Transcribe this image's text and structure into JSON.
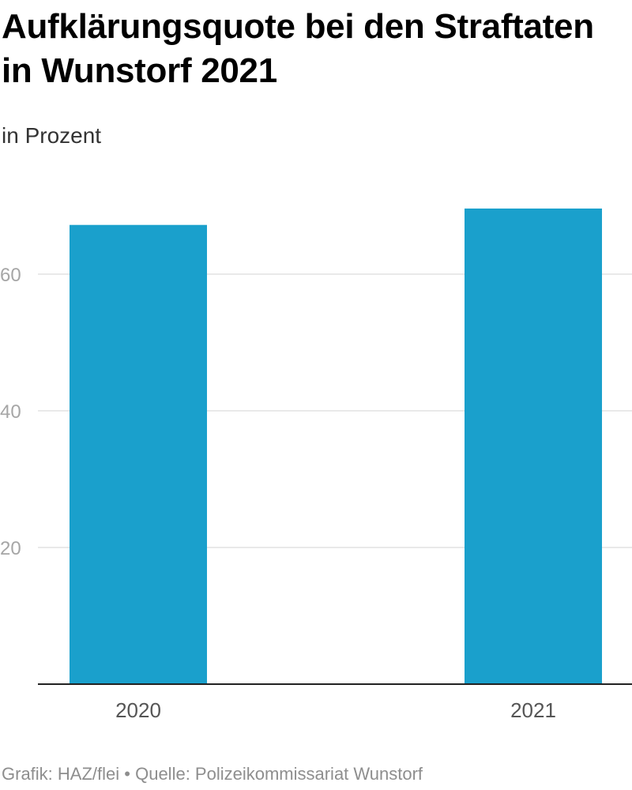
{
  "title": "Aufklärungsquote bei den Straftaten in Wunstorf 2021",
  "subtitle": "in Prozent",
  "footer": {
    "credit": "Grafik: HAZ/flei",
    "separator": "•",
    "source": "Quelle: Polizeikommissariat Wunstorf"
  },
  "colors": {
    "bar": "#1aa0cc",
    "grid": "#e2e2e2",
    "baseline": "#222222"
  },
  "chart_data": {
    "type": "bar",
    "title": "Aufklärungsquote bei den Straftaten in Wunstorf 2021",
    "subtitle": "in Prozent",
    "categories": [
      "2020",
      "2021"
    ],
    "values": [
      67.2,
      69.6
    ],
    "ylim": [
      0,
      70
    ],
    "yticks": [
      20,
      40,
      60
    ],
    "ytick_labels": [
      "20",
      "40",
      "60"
    ],
    "grid": true,
    "xlabel": "",
    "ylabel": ""
  }
}
